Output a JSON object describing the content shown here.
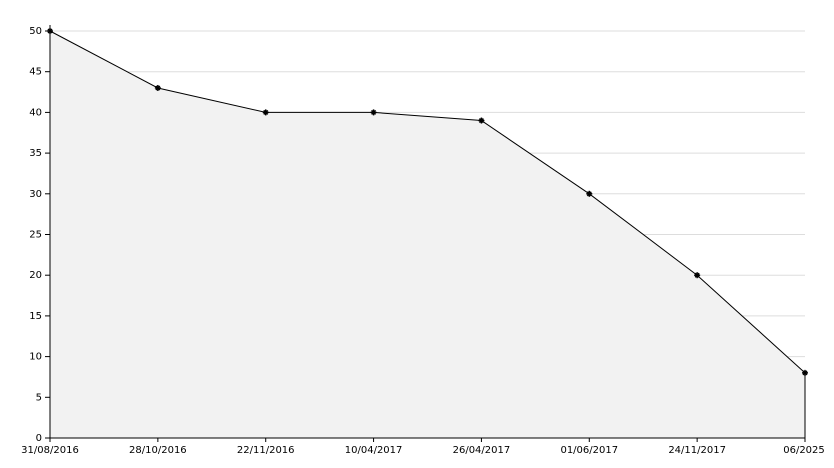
{
  "chart_data": {
    "type": "area",
    "categories": [
      "31/08/2016",
      "28/10/2016",
      "22/11/2016",
      "10/04/2017",
      "26/04/2017",
      "01/06/2017",
      "24/11/2017",
      "06/2025"
    ],
    "values": [
      50,
      43,
      40,
      40,
      39,
      30,
      20,
      8
    ],
    "color": "#000000",
    "fill": "#f2f2f2",
    "ylim": [
      0,
      50
    ],
    "yticks": [
      0,
      5,
      10,
      15,
      20,
      25,
      30,
      35,
      40,
      45,
      50
    ],
    "grid": true
  }
}
